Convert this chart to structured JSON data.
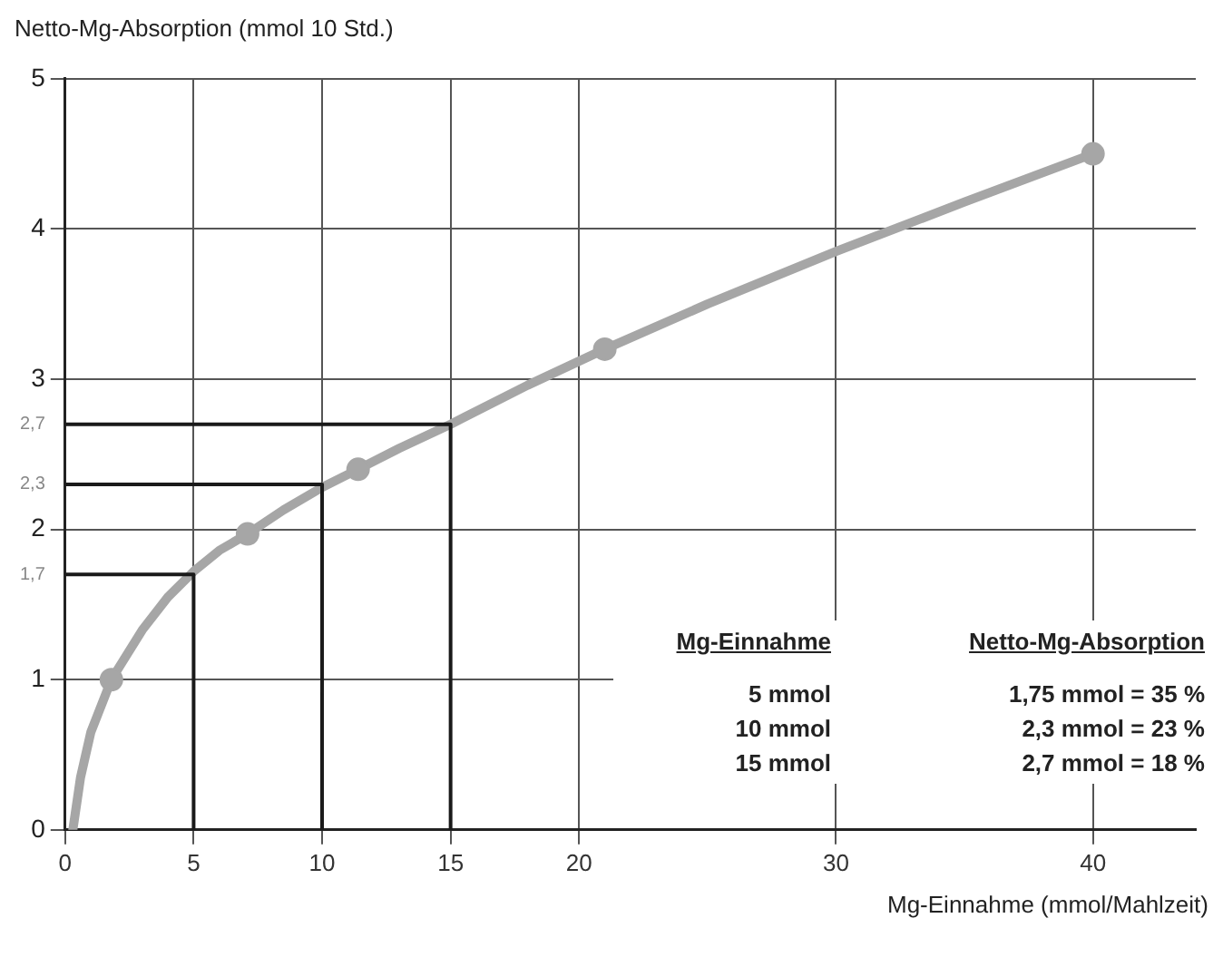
{
  "chart_data": {
    "type": "line",
    "ylabel": "Netto-Mg-Absorption (mmol 10 Std.)",
    "xlabel": "Mg-Einnahme (mmol/Mahlzeit)",
    "xlim": [
      0,
      44
    ],
    "xticks": [
      0,
      5,
      10,
      15,
      20,
      30,
      40
    ],
    "ylim": [
      0,
      5
    ],
    "yticks": [
      0,
      1,
      {
        "value": 1.7,
        "label": "1,7"
      },
      2,
      {
        "value": 2.3,
        "label": "2,3"
      },
      {
        "value": 2.7,
        "label": "2,7"
      },
      3,
      4,
      5
    ],
    "grid": true,
    "legend": false,
    "series": [
      {
        "color": "#a6a6a6",
        "marker": "none",
        "x": [
          0.3,
          0.6,
          1,
          1.8,
          3,
          4,
          5,
          6,
          7.1,
          8.5,
          10,
          11.4,
          13,
          15,
          18,
          21,
          25,
          30,
          35,
          40
        ],
        "values": [
          0,
          0.35,
          0.65,
          1,
          1.33,
          1.55,
          1.72,
          1.86,
          1.97,
          2.13,
          2.28,
          2.4,
          2.54,
          2.7,
          2.96,
          3.2,
          3.5,
          3.85,
          4.18,
          4.5
        ]
      },
      {
        "type": "scatter",
        "color": "#a6a6a6",
        "marker": "circle",
        "x": [
          1.8,
          7.1,
          11.4,
          21,
          40
        ],
        "values": [
          1,
          1.97,
          2.4,
          3.2,
          4.5
        ]
      },
      {
        "color": "#1a1a1a",
        "marker": "none",
        "x": [
          0,
          5,
          5
        ],
        "values": [
          1.7,
          1.7,
          0
        ]
      },
      {
        "color": "#1a1a1a",
        "marker": "none",
        "x": [
          0,
          10,
          10
        ],
        "values": [
          2.3,
          2.3,
          0
        ]
      },
      {
        "color": "#1a1a1a",
        "marker": "none",
        "x": [
          0,
          15,
          15
        ],
        "values": [
          2.7,
          2.7,
          0
        ]
      }
    ],
    "annotations": [
      "Mg-Einnahme",
      "Netto-Mg-Absorption",
      "5 mmol",
      "1,75 mmol = 35 %",
      "10 mmol",
      "2,3 mmol = 23 %",
      "15 mmol",
      "2,7 mmol = 18 %"
    ]
  }
}
